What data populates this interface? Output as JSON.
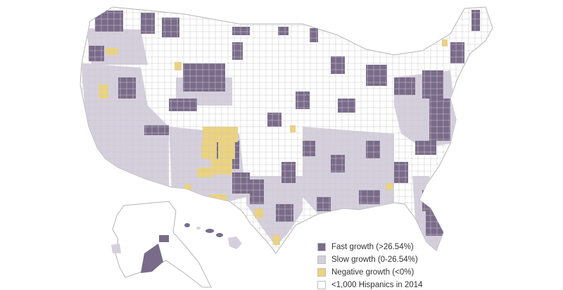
{
  "legend": {
    "items": [
      {
        "label": "Fast growth (>26.54%)",
        "color": "#7a6b8a"
      },
      {
        "label": "Slow growth (0-26.54%)",
        "color": "#d5cfdd"
      },
      {
        "label": "Negative growth (<0%)",
        "color": "#ecd37e"
      },
      {
        "label": "<1,000 Hispanics in 2014",
        "color": "#ffffff"
      }
    ]
  },
  "colors": {
    "fast": "#7a6b8a",
    "slow": "#d5cfdd",
    "negative": "#ecd37e",
    "none": "#ffffff",
    "border": "#bdbdbd"
  }
}
